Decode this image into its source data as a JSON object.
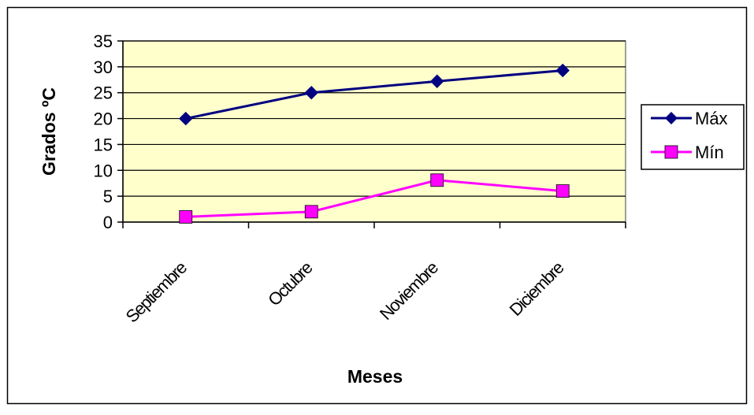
{
  "chart_data": {
    "type": "line",
    "title": "",
    "xlabel": "Meses",
    "ylabel": "Grados ºC",
    "ylim": [
      0,
      35
    ],
    "yticks": [
      "0",
      "5",
      "10",
      "15",
      "20",
      "25",
      "30",
      "35"
    ],
    "categories": [
      "Septiembre",
      "Octubre",
      "Noviembre",
      "Diciembre"
    ],
    "grid": true,
    "legend_position": "right",
    "series": [
      {
        "name": "Máx",
        "values": [
          20,
          25,
          27.2,
          29.3
        ],
        "color": "#000080",
        "marker": "diamond"
      },
      {
        "name": "Mín",
        "values": [
          1,
          2,
          8.1,
          6
        ],
        "color": "#ff00ff",
        "marker": "square"
      }
    ]
  },
  "colors": {
    "plot_background": "#ffffcc",
    "border": "#000000"
  }
}
